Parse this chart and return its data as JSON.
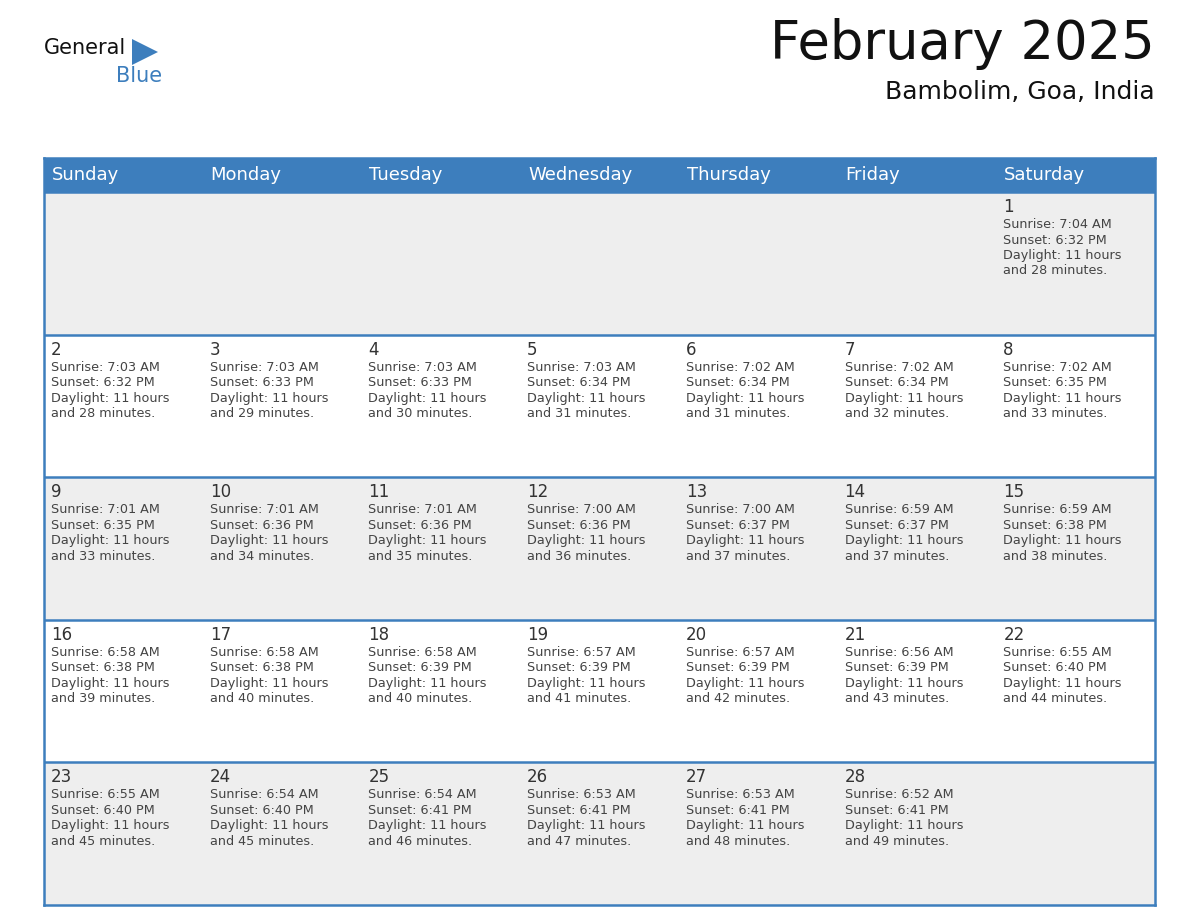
{
  "title": "February 2025",
  "subtitle": "Bambolim, Goa, India",
  "header_color": "#3d7ebd",
  "header_text_color": "#ffffff",
  "day_names": [
    "Sunday",
    "Monday",
    "Tuesday",
    "Wednesday",
    "Thursday",
    "Friday",
    "Saturday"
  ],
  "background_color": "#ffffff",
  "cell_bg_light": "#eeeeee",
  "cell_bg_white": "#ffffff",
  "border_color": "#3d7ebd",
  "title_fontsize": 38,
  "subtitle_fontsize": 18,
  "day_header_fontsize": 13,
  "day_num_fontsize": 12,
  "info_fontsize": 9.2,
  "logo_general_fontsize": 15,
  "logo_blue_fontsize": 15,
  "days": [
    {
      "date": 1,
      "row": 0,
      "col": 6,
      "sunrise": "7:04 AM",
      "sunset": "6:32 PM",
      "daylight_hours": 11,
      "daylight_minutes": 28
    },
    {
      "date": 2,
      "row": 1,
      "col": 0,
      "sunrise": "7:03 AM",
      "sunset": "6:32 PM",
      "daylight_hours": 11,
      "daylight_minutes": 28
    },
    {
      "date": 3,
      "row": 1,
      "col": 1,
      "sunrise": "7:03 AM",
      "sunset": "6:33 PM",
      "daylight_hours": 11,
      "daylight_minutes": 29
    },
    {
      "date": 4,
      "row": 1,
      "col": 2,
      "sunrise": "7:03 AM",
      "sunset": "6:33 PM",
      "daylight_hours": 11,
      "daylight_minutes": 30
    },
    {
      "date": 5,
      "row": 1,
      "col": 3,
      "sunrise": "7:03 AM",
      "sunset": "6:34 PM",
      "daylight_hours": 11,
      "daylight_minutes": 31
    },
    {
      "date": 6,
      "row": 1,
      "col": 4,
      "sunrise": "7:02 AM",
      "sunset": "6:34 PM",
      "daylight_hours": 11,
      "daylight_minutes": 31
    },
    {
      "date": 7,
      "row": 1,
      "col": 5,
      "sunrise": "7:02 AM",
      "sunset": "6:34 PM",
      "daylight_hours": 11,
      "daylight_minutes": 32
    },
    {
      "date": 8,
      "row": 1,
      "col": 6,
      "sunrise": "7:02 AM",
      "sunset": "6:35 PM",
      "daylight_hours": 11,
      "daylight_minutes": 33
    },
    {
      "date": 9,
      "row": 2,
      "col": 0,
      "sunrise": "7:01 AM",
      "sunset": "6:35 PM",
      "daylight_hours": 11,
      "daylight_minutes": 33
    },
    {
      "date": 10,
      "row": 2,
      "col": 1,
      "sunrise": "7:01 AM",
      "sunset": "6:36 PM",
      "daylight_hours": 11,
      "daylight_minutes": 34
    },
    {
      "date": 11,
      "row": 2,
      "col": 2,
      "sunrise": "7:01 AM",
      "sunset": "6:36 PM",
      "daylight_hours": 11,
      "daylight_minutes": 35
    },
    {
      "date": 12,
      "row": 2,
      "col": 3,
      "sunrise": "7:00 AM",
      "sunset": "6:36 PM",
      "daylight_hours": 11,
      "daylight_minutes": 36
    },
    {
      "date": 13,
      "row": 2,
      "col": 4,
      "sunrise": "7:00 AM",
      "sunset": "6:37 PM",
      "daylight_hours": 11,
      "daylight_minutes": 37
    },
    {
      "date": 14,
      "row": 2,
      "col": 5,
      "sunrise": "6:59 AM",
      "sunset": "6:37 PM",
      "daylight_hours": 11,
      "daylight_minutes": 37
    },
    {
      "date": 15,
      "row": 2,
      "col": 6,
      "sunrise": "6:59 AM",
      "sunset": "6:38 PM",
      "daylight_hours": 11,
      "daylight_minutes": 38
    },
    {
      "date": 16,
      "row": 3,
      "col": 0,
      "sunrise": "6:58 AM",
      "sunset": "6:38 PM",
      "daylight_hours": 11,
      "daylight_minutes": 39
    },
    {
      "date": 17,
      "row": 3,
      "col": 1,
      "sunrise": "6:58 AM",
      "sunset": "6:38 PM",
      "daylight_hours": 11,
      "daylight_minutes": 40
    },
    {
      "date": 18,
      "row": 3,
      "col": 2,
      "sunrise": "6:58 AM",
      "sunset": "6:39 PM",
      "daylight_hours": 11,
      "daylight_minutes": 40
    },
    {
      "date": 19,
      "row": 3,
      "col": 3,
      "sunrise": "6:57 AM",
      "sunset": "6:39 PM",
      "daylight_hours": 11,
      "daylight_minutes": 41
    },
    {
      "date": 20,
      "row": 3,
      "col": 4,
      "sunrise": "6:57 AM",
      "sunset": "6:39 PM",
      "daylight_hours": 11,
      "daylight_minutes": 42
    },
    {
      "date": 21,
      "row": 3,
      "col": 5,
      "sunrise": "6:56 AM",
      "sunset": "6:39 PM",
      "daylight_hours": 11,
      "daylight_minutes": 43
    },
    {
      "date": 22,
      "row": 3,
      "col": 6,
      "sunrise": "6:55 AM",
      "sunset": "6:40 PM",
      "daylight_hours": 11,
      "daylight_minutes": 44
    },
    {
      "date": 23,
      "row": 4,
      "col": 0,
      "sunrise": "6:55 AM",
      "sunset": "6:40 PM",
      "daylight_hours": 11,
      "daylight_minutes": 45
    },
    {
      "date": 24,
      "row": 4,
      "col": 1,
      "sunrise": "6:54 AM",
      "sunset": "6:40 PM",
      "daylight_hours": 11,
      "daylight_minutes": 45
    },
    {
      "date": 25,
      "row": 4,
      "col": 2,
      "sunrise": "6:54 AM",
      "sunset": "6:41 PM",
      "daylight_hours": 11,
      "daylight_minutes": 46
    },
    {
      "date": 26,
      "row": 4,
      "col": 3,
      "sunrise": "6:53 AM",
      "sunset": "6:41 PM",
      "daylight_hours": 11,
      "daylight_minutes": 47
    },
    {
      "date": 27,
      "row": 4,
      "col": 4,
      "sunrise": "6:53 AM",
      "sunset": "6:41 PM",
      "daylight_hours": 11,
      "daylight_minutes": 48
    },
    {
      "date": 28,
      "row": 4,
      "col": 5,
      "sunrise": "6:52 AM",
      "sunset": "6:41 PM",
      "daylight_hours": 11,
      "daylight_minutes": 49
    }
  ]
}
